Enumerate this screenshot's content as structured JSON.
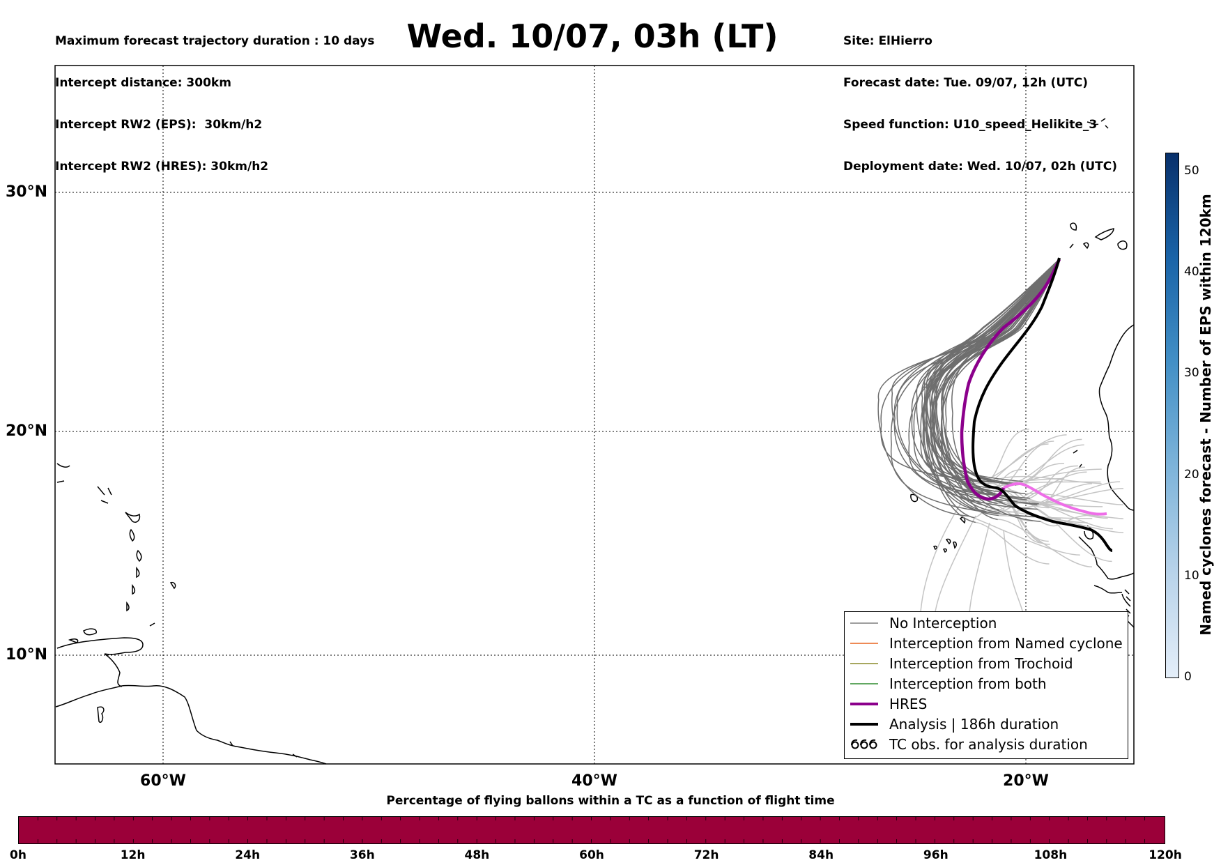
{
  "header": {
    "left_lines": [
      "Maximum forecast trajectory duration : 10 days",
      "Intercept distance: 300km",
      "Intercept RW2 (EPS):  30km/h2",
      "Intercept RW2 (HRES): 30km/h2"
    ],
    "title": "Wed. 10/07, 03h (LT)",
    "right_lines": [
      "Site: ElHierro",
      "Forecast date: Tue. 09/07, 12h (UTC)",
      "Speed function: U10_speed_Helikite_3",
      "Deployment date: Wed. 10/07, 02h (UTC)"
    ]
  },
  "map": {
    "lat_labels": [
      "30°N",
      "20°N",
      "10°N"
    ],
    "lon_labels": [
      "60°W",
      "40°W",
      "20°W"
    ]
  },
  "legend": {
    "items": [
      {
        "label": "No Interception",
        "color": "#7f7f7f",
        "style": "thin"
      },
      {
        "label": "Interception from Named cyclone",
        "color": "#e8641e",
        "style": "thin"
      },
      {
        "label": "Interception from Trochoid",
        "color": "#8a8a2a",
        "style": "thin"
      },
      {
        "label": "Interception from both",
        "color": "#2e8b2e",
        "style": "thin"
      },
      {
        "label": "HRES",
        "color": "#8b008b",
        "style": "thick"
      },
      {
        "label": "Analysis | 186h duration",
        "color": "#000000",
        "style": "thick"
      },
      {
        "label": "TC obs. for analysis duration",
        "color": "#000000",
        "style": "symbol"
      }
    ]
  },
  "colorbar": {
    "title": "Named cyclones forecast - Number of EPS within 120km",
    "ticks": [
      "0",
      "10",
      "20",
      "30",
      "40",
      "50"
    ]
  },
  "progress": {
    "title": "Percentage of flying ballons within a TC as a function of flight time",
    "labels": [
      "0h",
      "12h",
      "24h",
      "36h",
      "48h",
      "60h",
      "72h",
      "84h",
      "96h",
      "108h",
      "120h"
    ],
    "color": "#9b0039"
  }
}
